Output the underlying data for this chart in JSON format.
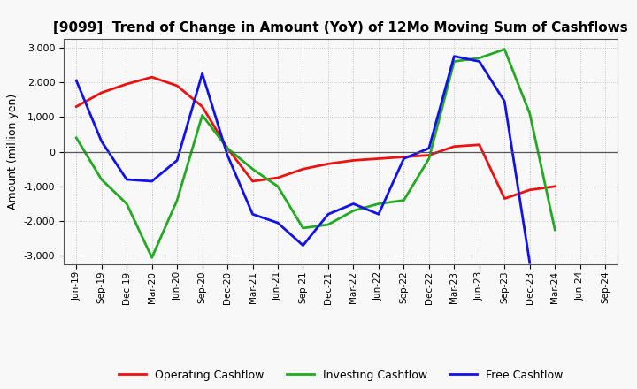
{
  "title": "[9099]  Trend of Change in Amount (YoY) of 12Mo Moving Sum of Cashflows",
  "ylabel": "Amount (million yen)",
  "xlabels": [
    "Jun-19",
    "Sep-19",
    "Dec-19",
    "Mar-20",
    "Jun-20",
    "Sep-20",
    "Dec-20",
    "Mar-21",
    "Jun-21",
    "Sep-21",
    "Dec-21",
    "Mar-22",
    "Jun-22",
    "Sep-22",
    "Dec-22",
    "Mar-23",
    "Jun-23",
    "Sep-23",
    "Dec-23",
    "Mar-24",
    "Jun-24",
    "Sep-24"
  ],
  "operating": [
    1300,
    1700,
    1950,
    2150,
    1900,
    1300,
    100,
    -850,
    -750,
    -500,
    -350,
    -250,
    -200,
    -150,
    -100,
    150,
    200,
    -1350,
    -1100,
    -1000,
    null,
    null
  ],
  "investing": [
    400,
    -800,
    -1500,
    -3050,
    -1400,
    1050,
    100,
    -500,
    -1000,
    -2200,
    -2100,
    -1700,
    -1500,
    -1400,
    -200,
    2600,
    2700,
    2950,
    1100,
    -2250,
    null,
    null
  ],
  "free": [
    2050,
    300,
    -800,
    -850,
    -250,
    2250,
    -100,
    -1800,
    -2050,
    -2700,
    -1800,
    -1500,
    -1800,
    -200,
    100,
    2750,
    2600,
    1450,
    -3200,
    null,
    null,
    null
  ],
  "ylim": [
    -3250,
    3250
  ],
  "yticks": [
    -3000,
    -2000,
    -1000,
    0,
    1000,
    2000,
    3000
  ],
  "operating_color": "#ee1111",
  "investing_color": "#22aa22",
  "free_color": "#1111ee",
  "background_color": "#f8f8f8",
  "grid_color": "#bbbbbb"
}
